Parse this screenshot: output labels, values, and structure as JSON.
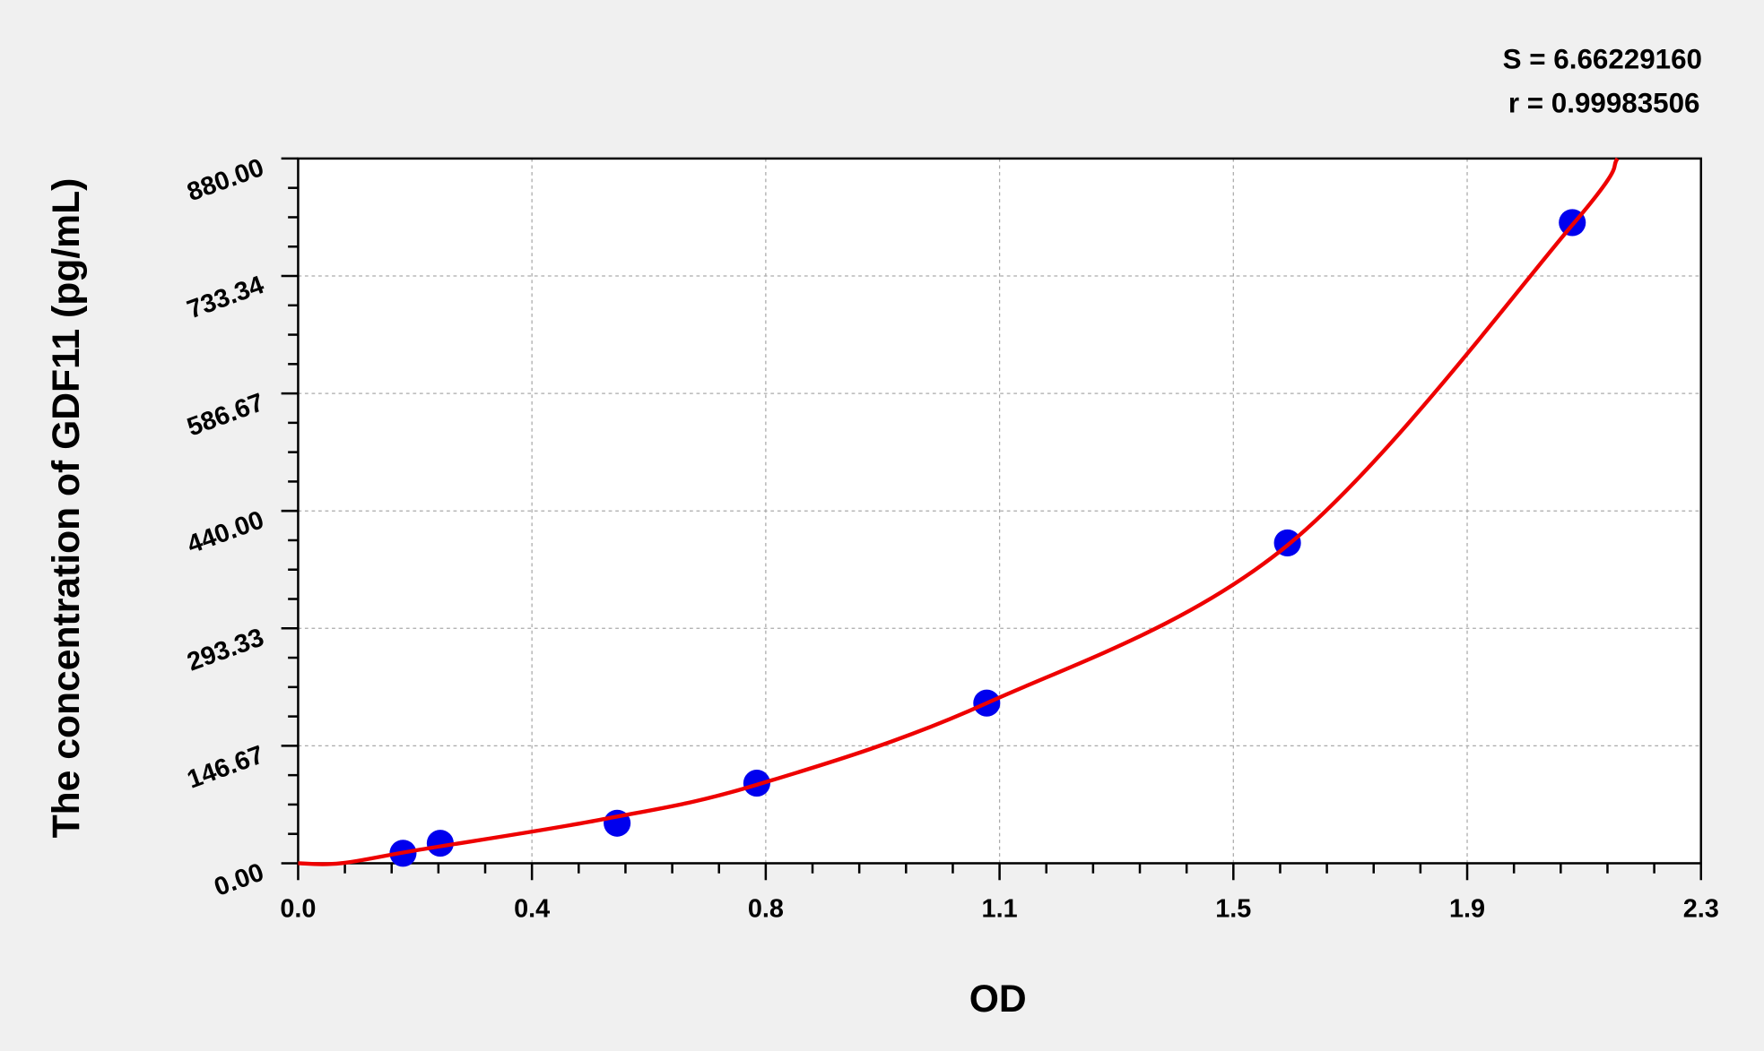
{
  "chart_data": {
    "type": "scatter",
    "title": "",
    "xlabel": "OD",
    "ylabel": "The concentration of GDF11 (pg/mL)",
    "xlim": [
      0,
      2.3
    ],
    "ylim": [
      0,
      880
    ],
    "x_tick_labels": [
      "0.0",
      "0.4",
      "0.8",
      "1.1",
      "1.5",
      "1.9",
      "2.3"
    ],
    "y_tick_labels": [
      "0.00",
      "146.67",
      "293.33",
      "440.00",
      "586.67",
      "733.34",
      "880.00"
    ],
    "grid": true,
    "stats": [
      "S = 6.66229160",
      "r = 0.99983506"
    ],
    "points": {
      "color": "#0000ee",
      "x": [
        0.172,
        0.233,
        0.523,
        0.752,
        1.129,
        1.622,
        2.089
      ],
      "y": [
        12.5,
        25,
        50,
        100,
        200,
        400,
        800
      ]
    },
    "fit_curve": {
      "color": "#ee0000",
      "x": [
        0,
        0.07,
        0.2,
        0.5,
        0.752,
        1.129,
        1.622,
        2.089,
        2.163
      ],
      "y": [
        0,
        0,
        17,
        55,
        98,
        200,
        397,
        797,
        880
      ]
    }
  }
}
